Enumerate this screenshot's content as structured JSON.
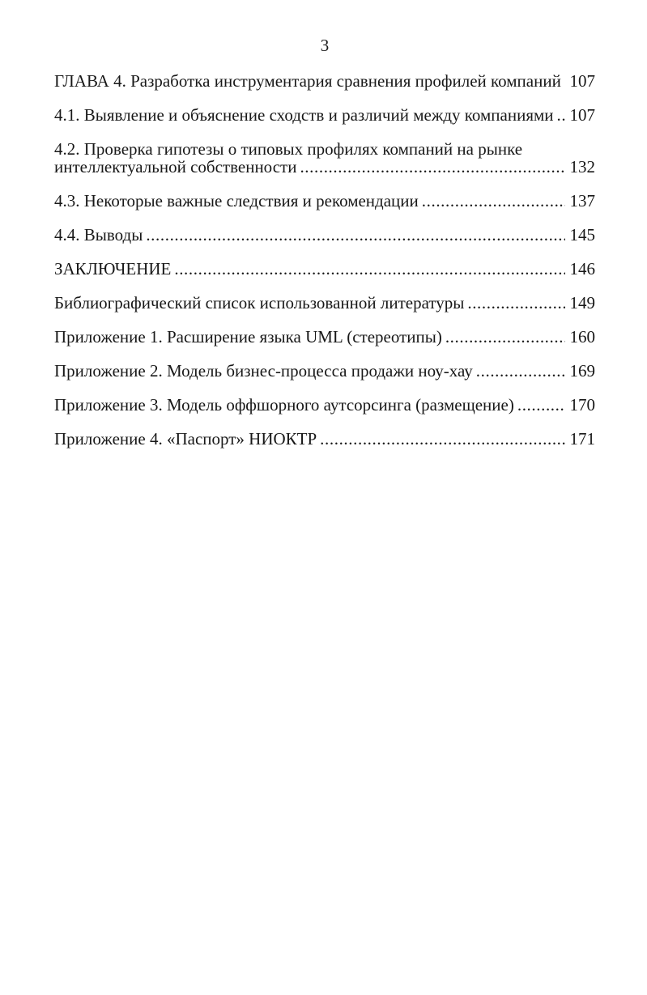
{
  "page": {
    "number": "3"
  },
  "toc": {
    "entries": [
      {
        "text": "ГЛАВА 4. Разработка инструментария сравнения профилей компаний",
        "page": "107"
      },
      {
        "text": "4.1. Выявление и объяснение сходств и различий между компаниями",
        "page": "107"
      },
      {
        "text": "4.2. Проверка гипотезы о типовых профилях компаний на рынке",
        "text2": "интеллектуальной собственности",
        "page": "132"
      },
      {
        "text": "4.3. Некоторые важные следствия и рекомендации",
        "page": "137"
      },
      {
        "text": "4.4. Выводы",
        "page": "145"
      },
      {
        "text": "ЗАКЛЮЧЕНИЕ",
        "page": "146"
      },
      {
        "text": "Библиографический список использованной литературы",
        "page": "149"
      },
      {
        "text": "Приложение 1. Расширение языка UML (стереотипы)",
        "page": "160"
      },
      {
        "text": "Приложение 2. Модель бизнес-процесса продажи ноу-хау",
        "page": "169"
      },
      {
        "text": "Приложение 3. Модель оффшорного аутсорсинга (размещение)",
        "page": "170"
      },
      {
        "text": "Приложение 4. «Паспорт» НИОКТР",
        "page": "171"
      }
    ]
  }
}
